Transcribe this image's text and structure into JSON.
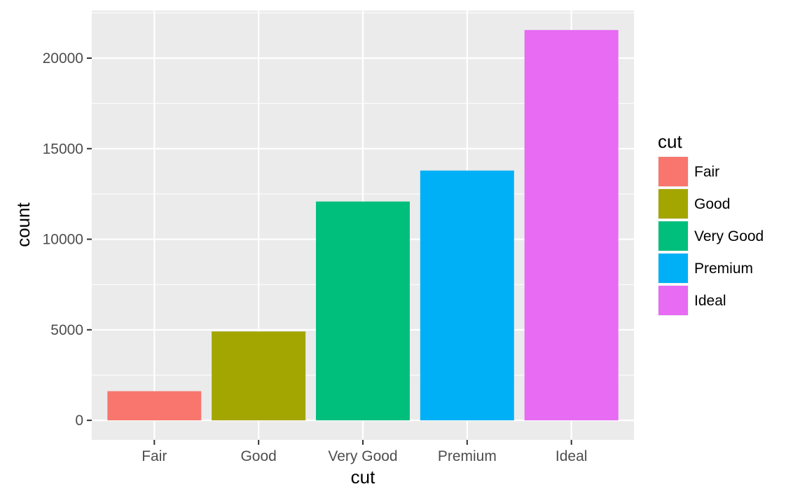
{
  "chart_data": {
    "type": "bar",
    "categories": [
      "Fair",
      "Good",
      "Very Good",
      "Premium",
      "Ideal"
    ],
    "values": [
      1610,
      4906,
      12082,
      13791,
      21551
    ],
    "colors": [
      "#F8766D",
      "#A3A500",
      "#00BF7D",
      "#00B0F6",
      "#E76BF3"
    ],
    "xlabel": "cut",
    "ylabel": "count",
    "ylim": [
      -1077.55,
      22628.55
    ],
    "yticks": [
      0,
      5000,
      10000,
      15000,
      20000
    ],
    "ytick_labels": [
      "0",
      "5000",
      "10000",
      "15000",
      "20000"
    ],
    "grid": true,
    "panel_background": "#EBEBEB",
    "legend": {
      "title": "cut",
      "position": "right",
      "items": [
        "Fair",
        "Good",
        "Very Good",
        "Premium",
        "Ideal"
      ]
    }
  }
}
